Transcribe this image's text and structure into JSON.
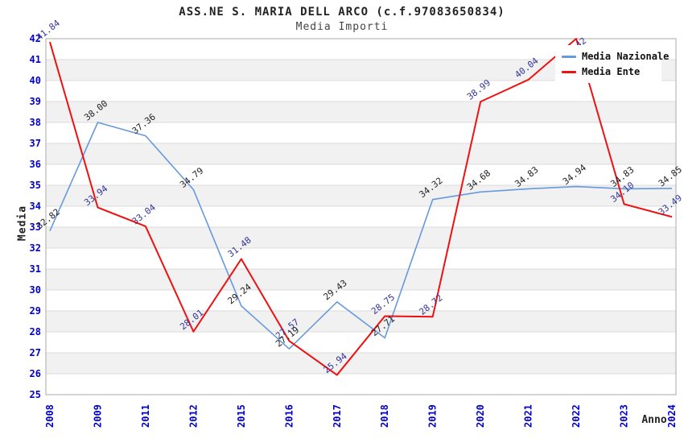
{
  "header": {
    "title": "ASS.NE S. MARIA DELL ARCO (c.f.97083650834)",
    "subtitle": "Media Importi"
  },
  "chart_data": {
    "type": "line",
    "title": "ASS.NE S. MARIA DELL ARCO (c.f.97083650834)",
    "subtitle": "Media Importi",
    "xlabel": "Anno",
    "ylabel": "Media",
    "ylim": [
      25,
      42
    ],
    "ytick_step": 1,
    "grid": true,
    "alternating_bands": true,
    "legend_position": "top-right",
    "axis_tick_color": "#0000cc",
    "categories": [
      "2008",
      "2009",
      "2011",
      "2012",
      "2015",
      "2016",
      "2017",
      "2018",
      "2019",
      "2020",
      "2021",
      "2022",
      "2023",
      "2024"
    ],
    "series": [
      {
        "name": "Media Nazionale",
        "color": "#6699dd",
        "label_color": "#222222",
        "values": [
          32.82,
          38.0,
          37.36,
          34.79,
          29.24,
          27.19,
          29.43,
          27.71,
          34.32,
          34.68,
          34.83,
          34.94,
          34.83,
          34.85
        ],
        "point_labels": [
          "32.82",
          "38.00",
          "37.36",
          "34.79",
          "29.24",
          "27.19",
          "29.43",
          "27.71",
          "34.32",
          "34.68",
          "34.83",
          "34.94",
          "34.83",
          "34.85"
        ]
      },
      {
        "name": "Media Ente",
        "color": "#ee1111",
        "label_color": "#333399",
        "values": [
          41.84,
          33.94,
          33.04,
          28.01,
          31.48,
          27.57,
          25.94,
          28.75,
          28.72,
          38.99,
          40.04,
          42.0,
          34.1,
          33.49
        ],
        "point_labels": [
          "41.84",
          "33.94",
          "33.04",
          "28.01",
          "31.48",
          "27.57",
          "25.94",
          "28.75",
          "28.72",
          "38.99",
          "40.04",
          "42",
          "34.10",
          "33.49"
        ]
      }
    ]
  }
}
